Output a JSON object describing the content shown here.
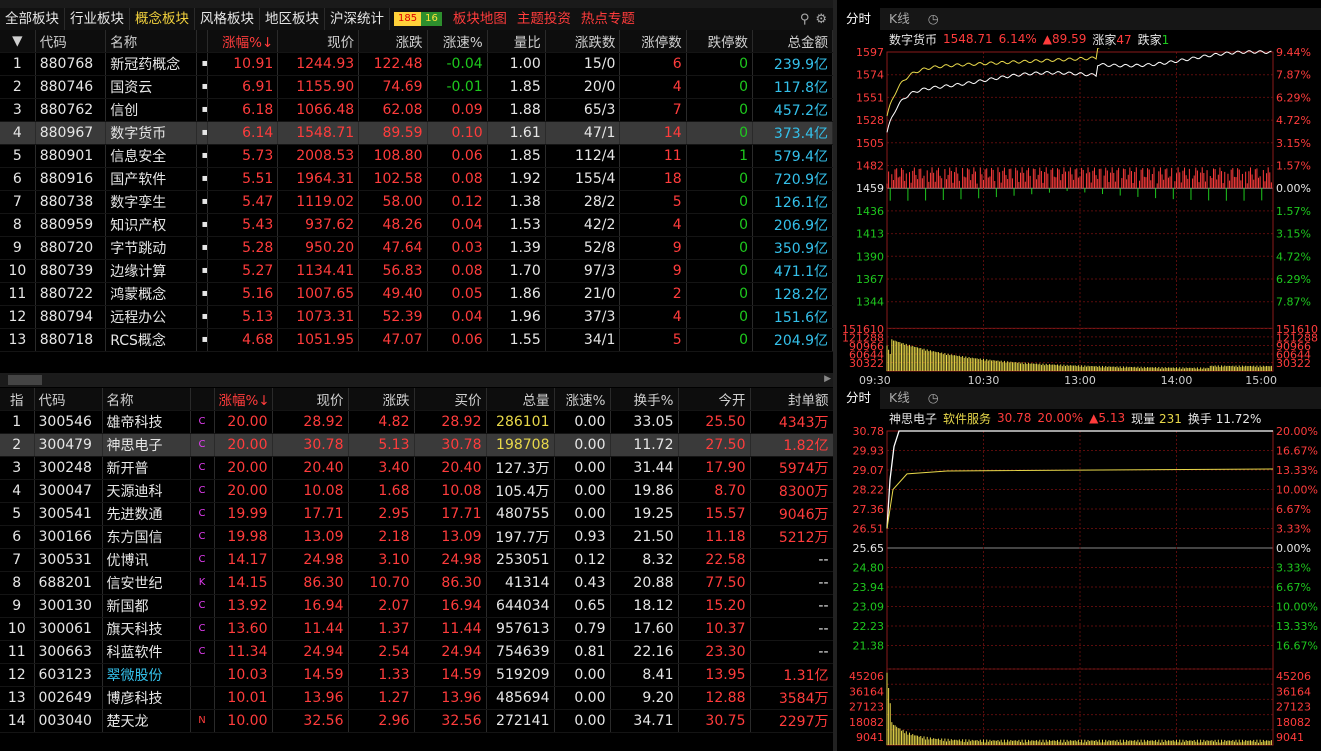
{
  "top_tabs": [
    "全部板块",
    "行业板块",
    "概念板块",
    "风格板块",
    "地区板块",
    "沪深统计"
  ],
  "up_count": "185",
  "down_count": "16",
  "red_tabs": [
    "板块地图",
    "主题投资",
    "热点专题"
  ],
  "sector_headers": [
    "",
    "代码",
    "名称",
    "",
    "涨幅%↓",
    "现价",
    "涨跌",
    "涨速%",
    "量比",
    "涨停数",
    "涨停数",
    "跌停数",
    "总金额"
  ],
  "sectors": [
    [
      "1",
      "880768",
      "新冠药概念",
      "10.91",
      "1244.93",
      "122.48",
      "-0.04",
      "1.00",
      "15/0",
      "6",
      "0",
      "239.9亿"
    ],
    [
      "2",
      "880746",
      "国资云",
      "6.91",
      "1155.90",
      "74.69",
      "-0.01",
      "1.85",
      "20/0",
      "4",
      "0",
      "117.8亿"
    ],
    [
      "3",
      "880762",
      "信创",
      "6.18",
      "1066.48",
      "62.08",
      "0.09",
      "1.88",
      "65/3",
      "7",
      "0",
      "457.2亿"
    ],
    [
      "4",
      "880967",
      "数字货币",
      "6.14",
      "1548.71",
      "89.59",
      "0.10",
      "1.61",
      "47/1",
      "14",
      "0",
      "373.4亿"
    ],
    [
      "5",
      "880901",
      "信息安全",
      "5.73",
      "2008.53",
      "108.80",
      "0.06",
      "1.85",
      "112/4",
      "11",
      "1",
      "579.4亿"
    ],
    [
      "6",
      "880916",
      "国产软件",
      "5.51",
      "1964.31",
      "102.58",
      "0.08",
      "1.92",
      "155/4",
      "18",
      "0",
      "720.9亿"
    ],
    [
      "7",
      "880738",
      "数字孪生",
      "5.47",
      "1119.02",
      "58.00",
      "0.12",
      "1.38",
      "28/2",
      "5",
      "0",
      "126.1亿"
    ],
    [
      "8",
      "880959",
      "知识产权",
      "5.43",
      "937.62",
      "48.26",
      "0.04",
      "1.53",
      "42/2",
      "4",
      "0",
      "206.9亿"
    ],
    [
      "9",
      "880720",
      "字节跳动",
      "5.28",
      "950.20",
      "47.64",
      "0.03",
      "1.39",
      "52/8",
      "9",
      "0",
      "350.9亿"
    ],
    [
      "10",
      "880739",
      "边缘计算",
      "5.27",
      "1134.41",
      "56.83",
      "0.08",
      "1.70",
      "97/3",
      "9",
      "0",
      "471.1亿"
    ],
    [
      "11",
      "880722",
      "鸿蒙概念",
      "5.16",
      "1007.65",
      "49.40",
      "0.05",
      "1.86",
      "21/0",
      "2",
      "0",
      "128.2亿"
    ],
    [
      "12",
      "880794",
      "远程办公",
      "5.13",
      "1073.31",
      "52.39",
      "0.04",
      "1.96",
      "37/3",
      "4",
      "0",
      "151.6亿"
    ],
    [
      "13",
      "880718",
      "RCS概念",
      "4.68",
      "1051.95",
      "47.07",
      "0.06",
      "1.55",
      "34/1",
      "5",
      "0",
      "204.9亿"
    ]
  ],
  "stock_headers": [
    "指",
    "代码",
    "名称",
    "",
    "涨幅%↓",
    "现价",
    "涨跌",
    "买价",
    "总量",
    "涨速%",
    "换手%",
    "今开",
    "封单额"
  ],
  "stocks": [
    [
      "1",
      "300546",
      "雄帝科技",
      "C",
      "20.00",
      "28.92",
      "4.82",
      "28.92",
      "286101",
      "0.00",
      "33.05",
      "25.50",
      "4343万"
    ],
    [
      "2",
      "300479",
      "神思电子",
      "C",
      "20.00",
      "30.78",
      "5.13",
      "30.78",
      "198708",
      "0.00",
      "11.72",
      "27.50",
      "1.82亿"
    ],
    [
      "3",
      "300248",
      "新开普",
      "C",
      "20.00",
      "20.40",
      "3.40",
      "20.40",
      "127.3万",
      "0.00",
      "31.44",
      "17.90",
      "5974万"
    ],
    [
      "4",
      "300047",
      "天源迪科",
      "C",
      "20.00",
      "10.08",
      "1.68",
      "10.08",
      "105.4万",
      "0.00",
      "19.86",
      "8.70",
      "8300万"
    ],
    [
      "5",
      "300541",
      "先进数通",
      "C",
      "19.99",
      "17.71",
      "2.95",
      "17.71",
      "480755",
      "0.00",
      "19.25",
      "15.57",
      "9046万"
    ],
    [
      "6",
      "300166",
      "东方国信",
      "C",
      "19.98",
      "13.09",
      "2.18",
      "13.09",
      "197.7万",
      "0.93",
      "21.50",
      "11.18",
      "5212万"
    ],
    [
      "7",
      "300531",
      "优博讯",
      "C",
      "14.17",
      "24.98",
      "3.10",
      "24.98",
      "253051",
      "0.12",
      "8.32",
      "22.58",
      "--"
    ],
    [
      "8",
      "688201",
      "信安世纪",
      "K",
      "14.15",
      "86.30",
      "10.70",
      "86.30",
      "41314",
      "0.43",
      "20.88",
      "77.50",
      "--"
    ],
    [
      "9",
      "300130",
      "新国都",
      "C",
      "13.92",
      "16.94",
      "2.07",
      "16.94",
      "644034",
      "0.65",
      "18.12",
      "15.20",
      "--"
    ],
    [
      "10",
      "300061",
      "旗天科技",
      "C",
      "13.60",
      "11.44",
      "1.37",
      "11.44",
      "957613",
      "0.79",
      "17.60",
      "10.37",
      "--"
    ],
    [
      "11",
      "300663",
      "科蓝软件",
      "C",
      "11.34",
      "24.94",
      "2.54",
      "24.94",
      "754639",
      "0.81",
      "22.16",
      "23.30",
      "--"
    ],
    [
      "12",
      "603123",
      "翠微股份",
      "",
      "10.03",
      "14.59",
      "1.33",
      "14.59",
      "519209",
      "0.00",
      "8.41",
      "13.95",
      "1.31亿"
    ],
    [
      "13",
      "002649",
      "博彦科技",
      "",
      "10.01",
      "13.96",
      "1.27",
      "13.96",
      "485694",
      "0.00",
      "9.20",
      "12.88",
      "3584万"
    ],
    [
      "14",
      "003040",
      "楚天龙",
      "N",
      "10.00",
      "32.56",
      "2.96",
      "32.56",
      "272141",
      "0.00",
      "34.71",
      "30.75",
      "2297万"
    ]
  ],
  "chart1": {
    "tabs": [
      "分时",
      "K线"
    ],
    "name": "数字货币",
    "price": "1548.71",
    "pct": "6.14%",
    "chg": "▲89.59",
    "up_label": "涨家",
    "up": "47",
    "down_label": "跌家",
    "down": "1",
    "y_labels": [
      "1597",
      "1574",
      "1551",
      "1528",
      "1505",
      "1482",
      "1459",
      "1436",
      "1413",
      "1390",
      "1367",
      "1344"
    ],
    "pct_labels": [
      "9.44%",
      "7.87%",
      "6.29%",
      "4.72%",
      "3.15%",
      "1.57%",
      "0.00%",
      "1.57%",
      "3.15%",
      "4.72%",
      "6.29%",
      "7.87%"
    ],
    "vol_labels": [
      "151610",
      "121288",
      "90966",
      "60644",
      "30322"
    ],
    "times": [
      "09:30",
      "10:30",
      "13:00",
      "14:00",
      "15:00"
    ]
  },
  "chart2": {
    "tabs": [
      "分时",
      "K线"
    ],
    "name": "神思电子",
    "sector": "软件服务",
    "price": "30.78",
    "pct": "20.00%",
    "chg": "▲5.13",
    "vol_label": "现量",
    "vol": "231",
    "turn_label": "换手",
    "turn": "11.72%",
    "y_labels": [
      "30.78",
      "29.93",
      "29.07",
      "28.22",
      "27.36",
      "26.51",
      "25.65",
      "24.80",
      "23.94",
      "23.09",
      "22.23",
      "21.38"
    ],
    "pct_labels": [
      "20.00%",
      "16.67%",
      "13.33%",
      "10.00%",
      "6.67%",
      "3.33%",
      "0.00%",
      "3.33%",
      "6.67%",
      "10.00%",
      "13.33%",
      "16.67%"
    ],
    "vol_labels": [
      "45206",
      "36164",
      "27123",
      "18082",
      "9041"
    ]
  },
  "colors": {
    "up": "#ff3c3c",
    "down": "#1ec81e",
    "bg": "#000000",
    "grid": "#5a0c0c"
  }
}
